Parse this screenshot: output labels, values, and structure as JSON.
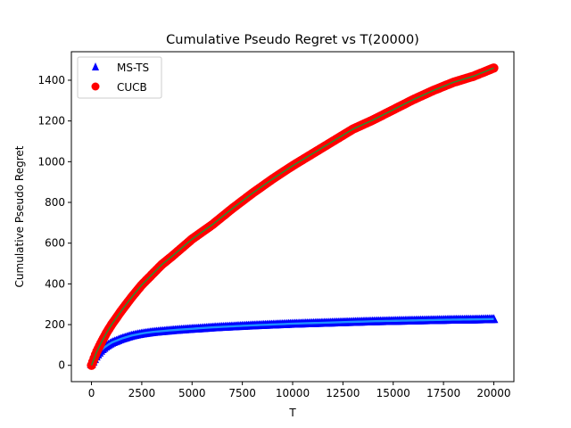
{
  "chart_data": {
    "type": "scatter",
    "title": "Cumulative Pseudo Regret vs T(20000)",
    "xlabel": "T",
    "ylabel": "Cumulative Pseudo Regret",
    "xlim": [
      -1000,
      21000
    ],
    "ylim": [
      -80,
      1540
    ],
    "xticks": [
      0,
      2500,
      5000,
      7500,
      10000,
      12500,
      15000,
      17500,
      20000
    ],
    "yticks": [
      0,
      200,
      400,
      600,
      800,
      1000,
      1200,
      1400
    ],
    "grid": false,
    "legend_position": "top-left",
    "series": [
      {
        "name": "MS-TS",
        "marker": "triangle",
        "color": "#0000ff",
        "x": [
          0,
          250,
          500,
          750,
          1000,
          1500,
          2000,
          2500,
          3000,
          4000,
          5000,
          6000,
          7000,
          8000,
          9000,
          10000,
          11000,
          12000,
          13000,
          14000,
          15000,
          16000,
          17000,
          18000,
          19000,
          20000
        ],
        "y": [
          0,
          40,
          70,
          90,
          105,
          125,
          140,
          150,
          157,
          166,
          173,
          180,
          185,
          190,
          194,
          198,
          201,
          204,
          207,
          210,
          212,
          214,
          216,
          218,
          219,
          221
        ]
      },
      {
        "name": "CUCB",
        "marker": "circle",
        "color": "#ff0000",
        "x": [
          0,
          250,
          500,
          750,
          1000,
          1500,
          2000,
          2500,
          3000,
          3500,
          4000,
          5000,
          6000,
          7000,
          8000,
          9000,
          10000,
          11000,
          12000,
          13000,
          14000,
          15000,
          16000,
          17000,
          18000,
          19000,
          20000
        ],
        "y": [
          0,
          65,
          115,
          160,
          200,
          270,
          335,
          395,
          445,
          495,
          535,
          620,
          690,
          770,
          845,
          915,
          980,
          1040,
          1100,
          1160,
          1205,
          1255,
          1305,
          1350,
          1390,
          1420,
          1460
        ]
      }
    ]
  }
}
